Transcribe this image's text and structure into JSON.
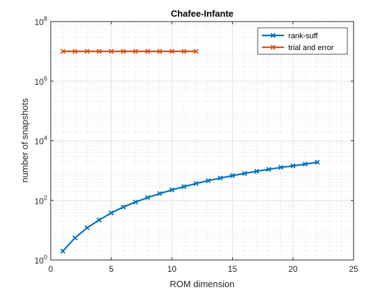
{
  "chart_data": {
    "type": "line",
    "title": "Chafee-Infante",
    "xlabel": "ROM dimension",
    "ylabel": "number of snapshots",
    "xlim": [
      0,
      25
    ],
    "ylim": [
      1,
      100000000
    ],
    "yscale": "log",
    "grid": true,
    "minor_grid": true,
    "legend_position": "top-right",
    "x_ticks": [
      0,
      5,
      10,
      15,
      20,
      25
    ],
    "y_ticks": [
      {
        "base": "10",
        "exp": "0",
        "value": 1
      },
      {
        "base": "10",
        "exp": "2",
        "value": 100
      },
      {
        "base": "10",
        "exp": "4",
        "value": 10000
      },
      {
        "base": "10",
        "exp": "6",
        "value": 1000000
      },
      {
        "base": "10",
        "exp": "8",
        "value": 100000000
      }
    ],
    "series": [
      {
        "name": "rank-suff",
        "color": "#0072BD",
        "marker": "x",
        "x": [
          1,
          2,
          3,
          4,
          5,
          6,
          7,
          8,
          9,
          10,
          11,
          12,
          13,
          14,
          15,
          16,
          17,
          18,
          19,
          20,
          21,
          22
        ],
        "y": [
          2,
          5.5,
          12,
          22,
          38,
          60,
          88,
          125,
          170,
          225,
          290,
          370,
          460,
          560,
          680,
          800,
          950,
          1100,
          1280,
          1450,
          1650,
          1900
        ]
      },
      {
        "name": "trial and error",
        "color": "#D95319",
        "marker": "x",
        "x": [
          1,
          2,
          3,
          4,
          5,
          6,
          7,
          8,
          9,
          10,
          11,
          12
        ],
        "y": [
          10000000,
          10000000,
          10000000,
          10000000,
          10000000,
          10000000,
          10000000,
          10000000,
          10000000,
          10000000,
          10000000,
          10000000
        ]
      }
    ]
  }
}
